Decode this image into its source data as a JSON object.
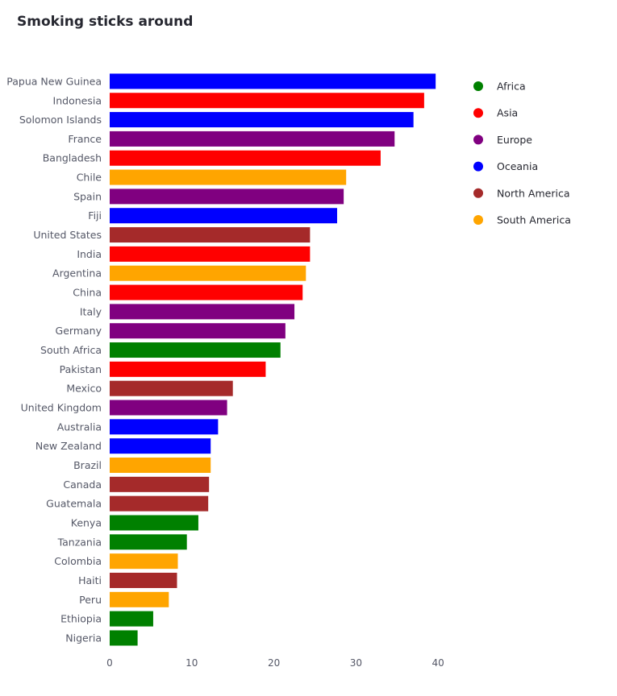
{
  "chart_data": {
    "type": "bar",
    "orientation": "horizontal",
    "title": "Smoking sticks around",
    "xlabel": "",
    "ylabel": "",
    "xlim": [
      0,
      42
    ],
    "x_ticks": [
      0,
      10,
      20,
      30,
      40
    ],
    "grid": false,
    "legend_position": "right",
    "categories": [
      "Papua New Guinea",
      "Indonesia",
      "Solomon Islands",
      "France",
      "Bangladesh",
      "Chile",
      "Spain",
      "Fiji",
      "United States",
      "India",
      "Argentina",
      "China",
      "Italy",
      "Germany",
      "South Africa",
      "Pakistan",
      "Mexico",
      "United Kingdom",
      "Australia",
      "New Zealand",
      "Brazil",
      "Canada",
      "Guatemala",
      "Kenya",
      "Tanzania",
      "Colombia",
      "Haiti",
      "Peru",
      "Ethiopia",
      "Nigeria"
    ],
    "values": [
      39.7,
      38.3,
      37.0,
      34.7,
      33.0,
      28.8,
      28.5,
      27.7,
      24.4,
      24.4,
      23.9,
      23.5,
      22.5,
      21.4,
      20.8,
      19.0,
      15.0,
      14.3,
      13.2,
      12.3,
      12.3,
      12.1,
      12.0,
      10.8,
      9.4,
      8.3,
      8.2,
      7.2,
      5.3,
      3.4
    ],
    "groups": [
      "Oceania",
      "Asia",
      "Oceania",
      "Europe",
      "Asia",
      "South America",
      "Europe",
      "Oceania",
      "North America",
      "Asia",
      "South America",
      "Asia",
      "Europe",
      "Europe",
      "Africa",
      "Asia",
      "North America",
      "Europe",
      "Oceania",
      "Oceania",
      "South America",
      "North America",
      "North America",
      "Africa",
      "Africa",
      "South America",
      "North America",
      "South America",
      "Africa",
      "Africa"
    ],
    "legend": [
      {
        "name": "Africa",
        "color": "#008000"
      },
      {
        "name": "Asia",
        "color": "#ff0000"
      },
      {
        "name": "Europe",
        "color": "#800080"
      },
      {
        "name": "Oceania",
        "color": "#0000ff"
      },
      {
        "name": "North America",
        "color": "#a52a2a"
      },
      {
        "name": "South America",
        "color": "#ffa500"
      }
    ]
  }
}
